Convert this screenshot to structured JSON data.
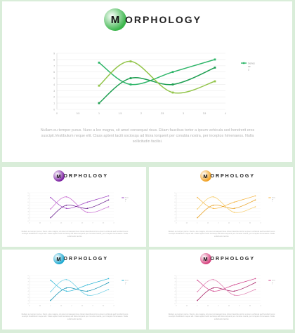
{
  "title": {
    "letter": "M",
    "rest": "ORPHOLOGY"
  },
  "paragraph": "Nullam eu tempor purus. Nunc a leo magna, sit amet consequat risus. Etiam faucibus tortor a ipsum vehicula sed hendrerit eros suscipit.Vestibulum neque elit. Class aptent taciti sociosqu ad litora torquent per conubia nostra, per inceptos himenaeos. Nulla sollicitudin facilisi.",
  "legend": {
    "series1": "Series",
    "series2": "se",
    "series3": "2"
  },
  "chart_data": {
    "type": "line",
    "x": [
      0,
      0.5,
      1,
      1.5,
      2,
      2.5,
      3,
      3.5,
      4
    ],
    "x_tick_labels": [
      "0",
      "0.5",
      "1",
      "1.5",
      "2",
      "2.5",
      "3",
      "3.5",
      "4"
    ],
    "y_tick_labels": [
      "0",
      "1",
      "2",
      "3",
      "4",
      "5",
      "6",
      "7",
      "8",
      "9"
    ],
    "ylim": [
      0,
      9
    ],
    "xlim": [
      0,
      4
    ],
    "series": [
      {
        "points": [
          [
            1,
            7.5
          ],
          [
            1.75,
            4
          ],
          [
            2.75,
            6
          ],
          [
            3.75,
            8
          ]
        ]
      },
      {
        "points": [
          [
            1,
            1
          ],
          [
            1.75,
            5
          ],
          [
            2.75,
            4
          ],
          [
            3.75,
            6.7
          ]
        ]
      },
      {
        "points": [
          [
            1,
            3.8
          ],
          [
            1.75,
            7.7
          ],
          [
            2.75,
            2.7
          ],
          [
            3.75,
            4.5
          ]
        ]
      }
    ]
  },
  "themes": {
    "main": {
      "colors": [
        "#2fb66a",
        "#1f9f52",
        "#93c54b"
      ],
      "logo": "#3ab54a"
    },
    "purple": {
      "colors": [
        "#9c3fc0",
        "#6a1f8f",
        "#c86bd1"
      ],
      "logo": "#7b1fa2"
    },
    "orange": {
      "colors": [
        "#f5b541",
        "#e8a020",
        "#f7cd6b"
      ],
      "logo": "#f0a020"
    },
    "cyan": {
      "colors": [
        "#28b4d6",
        "#1795b5",
        "#6fd0e6"
      ],
      "logo": "#1aa7d0"
    },
    "pink": {
      "colors": [
        "#d0418a",
        "#a9266a",
        "#e07fb0"
      ],
      "logo": "#d63f7c"
    }
  }
}
